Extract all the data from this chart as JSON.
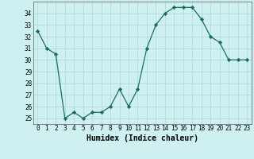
{
  "x": [
    0,
    1,
    2,
    3,
    4,
    5,
    6,
    7,
    8,
    9,
    10,
    11,
    12,
    13,
    14,
    15,
    16,
    17,
    18,
    19,
    20,
    21,
    22,
    23
  ],
  "y": [
    32.5,
    31.0,
    30.5,
    25.0,
    25.5,
    25.0,
    25.5,
    25.5,
    26.0,
    27.5,
    26.0,
    27.5,
    31.0,
    33.0,
    34.0,
    34.5,
    34.5,
    34.5,
    33.5,
    32.0,
    31.5,
    30.0,
    30.0,
    30.0
  ],
  "line_color": "#1a6e5e",
  "marker": "D",
  "marker_size": 2.2,
  "bg_color": "#cef0f0",
  "grid_color": "#aad8d8",
  "xlabel": "Humidex (Indice chaleur)",
  "ylim": [
    24.5,
    35.0
  ],
  "xlim": [
    -0.5,
    23.5
  ],
  "yticks": [
    25,
    26,
    27,
    28,
    29,
    30,
    31,
    32,
    33,
    34
  ],
  "xticks": [
    0,
    1,
    2,
    3,
    4,
    5,
    6,
    7,
    8,
    9,
    10,
    11,
    12,
    13,
    14,
    15,
    16,
    17,
    18,
    19,
    20,
    21,
    22,
    23
  ],
  "font_size": 5.5,
  "label_font_size": 7.0
}
